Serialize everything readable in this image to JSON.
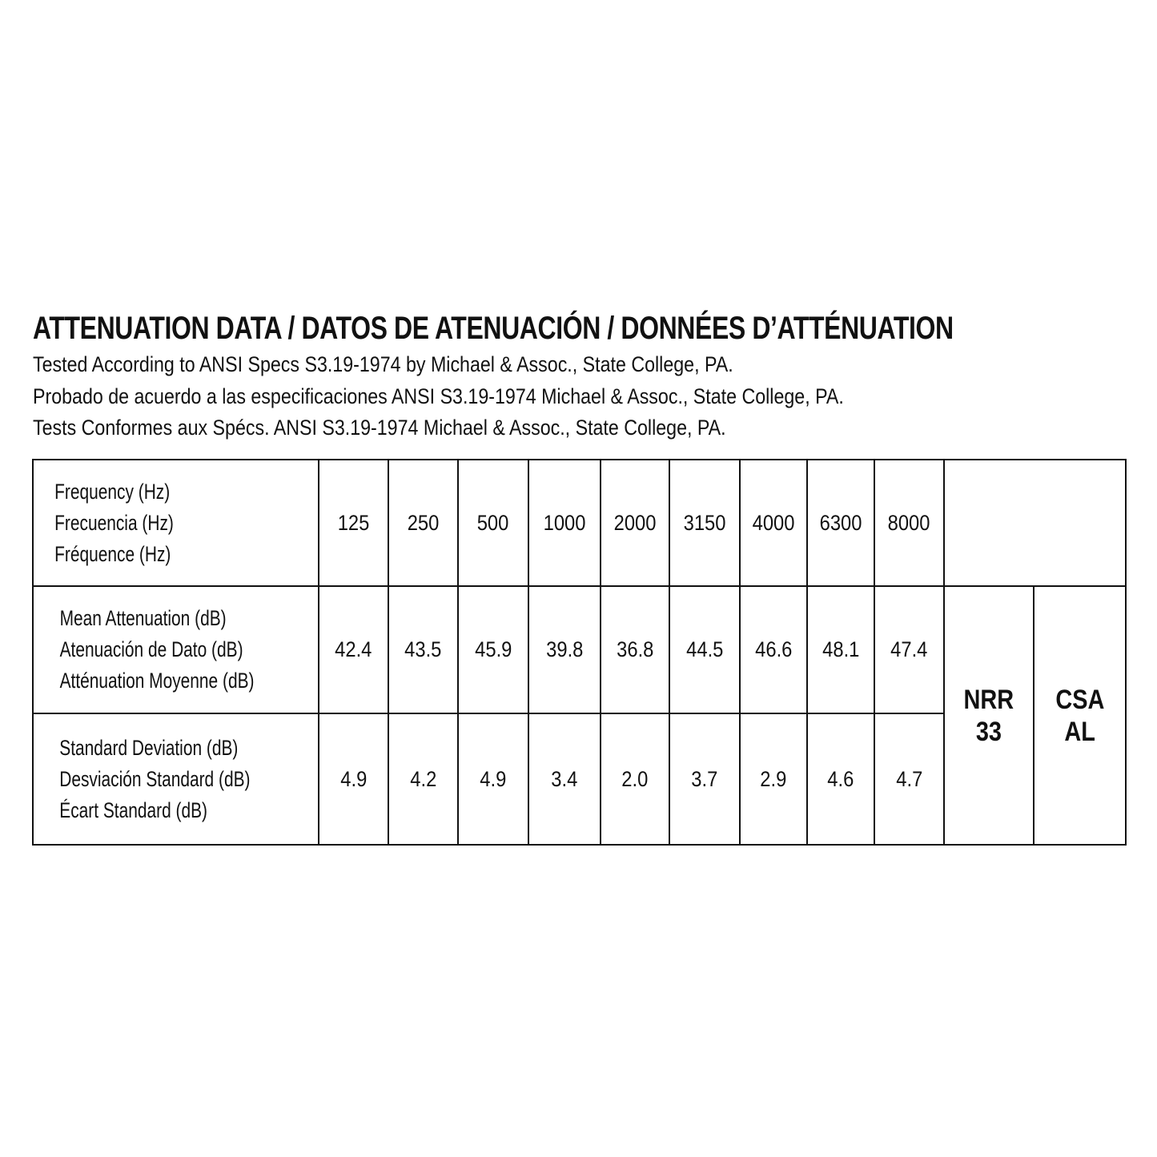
{
  "title": "ATTENUATION DATA / DATOS DE ATENUACIÓN / DONNÉES D’ATTÉNUATION",
  "subtitles": [
    "Tested According to ANSI Specs S3.19-1974 by Michael & Assoc., State College, PA.",
    "Probado de acuerdo a las especificaciones ANSI S3.19-1974 Michael & Assoc., State College, PA.",
    "Tests Conformes aux Spécs. ANSI S3.19-1974 Michael & Assoc., State College, PA."
  ],
  "table": {
    "frequency_label": [
      "Frequency (Hz)",
      "Frecuencia (Hz)",
      "Fréquence (Hz)"
    ],
    "frequencies": [
      "125",
      "250",
      "500",
      "1000",
      "2000",
      "3150",
      "4000",
      "6300",
      "8000"
    ],
    "mean_label": [
      "Mean Attenuation (dB)",
      "Atenuación de Dato (dB)",
      "Atténuation Moyenne (dB)"
    ],
    "mean": [
      "42.4",
      "43.5",
      "45.9",
      "39.8",
      "36.8",
      "44.5",
      "46.6",
      "48.1",
      "47.4"
    ],
    "sd_label": [
      "Standard Deviation (dB)",
      "Desviación Standard (dB)",
      "Écart Standard (dB)"
    ],
    "sd": [
      "4.9",
      "4.2",
      "4.9",
      "3.4",
      "2.0",
      "3.7",
      "2.9",
      "4.6",
      "4.7"
    ],
    "nrr": {
      "label": "NRR",
      "value": "33"
    },
    "csa": {
      "label": "CSA",
      "value": "AL"
    }
  }
}
